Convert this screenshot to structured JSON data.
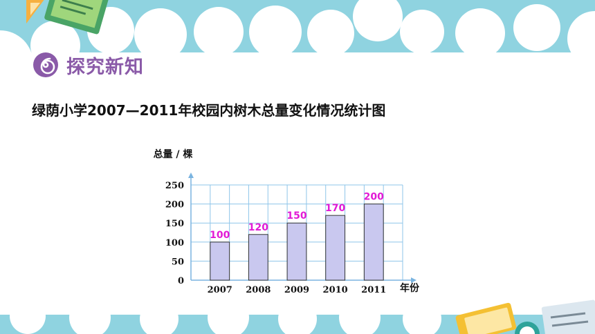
{
  "section_heading": "探究新知",
  "chart_data": {
    "type": "bar",
    "title": "绿荫小学2007—2011年校园内树木总量变化情况统计图",
    "ylabel": "总量 / 棵",
    "xlabel": "年份",
    "categories": [
      "2007",
      "2008",
      "2009",
      "2010",
      "2011"
    ],
    "values": [
      100,
      120,
      150,
      170,
      200
    ],
    "yticks": [
      0,
      50,
      100,
      150,
      200,
      250
    ],
    "ylim": [
      0,
      250
    ],
    "grid": true,
    "bar_color": "#c9c8ef",
    "label_color": "#e21ad6"
  }
}
